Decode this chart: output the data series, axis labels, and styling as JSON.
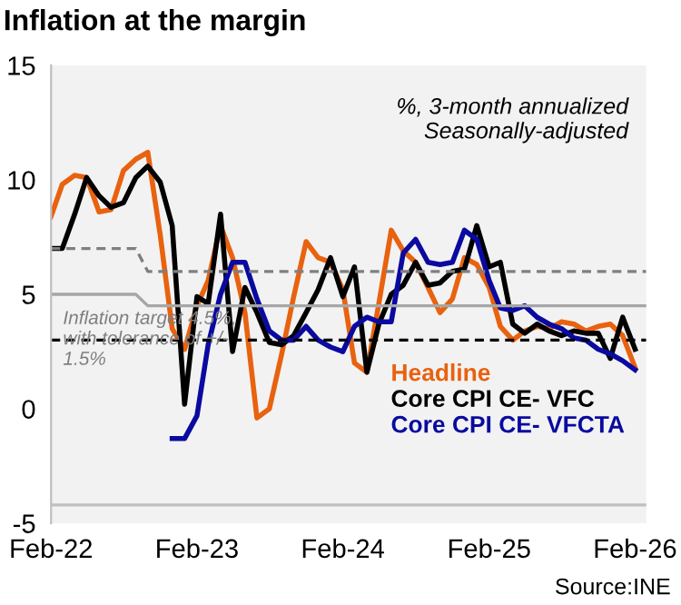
{
  "chart_data": {
    "type": "line",
    "title": "Inflation at the margin",
    "x": [
      "2022-02",
      "2022-03",
      "2022-04",
      "2022-05",
      "2022-06",
      "2022-07",
      "2022-08",
      "2022-09",
      "2022-10",
      "2022-11",
      "2022-12",
      "2023-01",
      "2023-02",
      "2023-03",
      "2023-04",
      "2023-05",
      "2023-06",
      "2023-07",
      "2023-08",
      "2023-09",
      "2023-10",
      "2023-11",
      "2023-12",
      "2024-01",
      "2024-02",
      "2024-03",
      "2024-04",
      "2024-05",
      "2024-06",
      "2024-07",
      "2024-08",
      "2024-09",
      "2024-10",
      "2024-11",
      "2024-12",
      "2025-01",
      "2025-02",
      "2025-03",
      "2025-04",
      "2025-05",
      "2025-06",
      "2025-07",
      "2025-08",
      "2025-09",
      "2025-10",
      "2025-11",
      "2025-12",
      "2026-01",
      "2026-02"
    ],
    "series": [
      {
        "name": "Headline",
        "color": "#e8620f",
        "values": [
          8.4,
          9.8,
          10.2,
          10.1,
          8.6,
          8.7,
          10.4,
          10.9,
          11.2,
          7.6,
          3.5,
          2.6,
          4.5,
          5.6,
          8.0,
          6.6,
          4.2,
          -0.4,
          0.0,
          2.4,
          4.9,
          7.3,
          6.6,
          6.4,
          5.2,
          2.0,
          1.6,
          4.6,
          7.8,
          6.9,
          6.4,
          5.3,
          4.2,
          4.8,
          6.6,
          6.3,
          5.3,
          3.6,
          3.0,
          3.4,
          3.6,
          3.5,
          3.8,
          3.7,
          3.4,
          3.6,
          3.7,
          3.2,
          1.8
        ]
      },
      {
        "name": "Core CPI CE- VFC",
        "color": "#000000",
        "values": [
          7.0,
          7.0,
          8.5,
          10.1,
          9.3,
          8.8,
          9.0,
          10.1,
          10.6,
          9.9,
          8.0,
          0.2,
          4.9,
          4.6,
          8.5,
          2.5,
          5.3,
          4.2,
          2.9,
          2.8,
          3.2,
          4.2,
          5.2,
          6.6,
          4.9,
          6.2,
          1.6,
          3.7,
          5.0,
          5.4,
          6.4,
          5.4,
          5.5,
          6.0,
          6.1,
          8.0,
          6.2,
          6.4,
          3.7,
          3.3,
          3.7,
          3.4,
          3.2,
          3.4,
          3.3,
          3.3,
          2.2,
          4.0,
          2.6
        ]
      },
      {
        "name": "Core CPI CE- VFCTA",
        "color": "#0a0aa0",
        "values": [
          null,
          null,
          null,
          null,
          null,
          null,
          null,
          null,
          null,
          null,
          -1.3,
          -1.3,
          -0.3,
          2.8,
          5.0,
          6.4,
          6.4,
          4.8,
          3.4,
          3.0,
          3.0,
          3.6,
          3.0,
          2.7,
          2.5,
          3.6,
          4.0,
          3.8,
          3.8,
          6.8,
          7.4,
          6.4,
          6.3,
          6.4,
          7.8,
          7.4,
          5.6,
          4.4,
          4.3,
          4.5,
          4.0,
          3.7,
          3.5,
          3.1,
          3.0,
          2.6,
          2.4,
          2.1,
          1.7
        ]
      },
      {
        "color": "#7f7f7f",
        "line_style": "dashed",
        "x": [
          "2022-02",
          "2022-09",
          "2022-10",
          "2026-03"
        ],
        "values": [
          7,
          7,
          6,
          6
        ]
      },
      {
        "color": "#a6a6a6",
        "line_style": "solid",
        "x": [
          "2022-02",
          "2022-09",
          "2022-10",
          "2026-03"
        ],
        "values": [
          5,
          5,
          4.5,
          4.5
        ]
      },
      {
        "color": "#000000",
        "line_style": "dashed",
        "x": [
          "2022-02",
          "2026-03"
        ],
        "values": [
          3,
          3
        ]
      }
    ],
    "ref_lines": [
      {
        "axis": "y",
        "value": -4.2,
        "color": "#bfbfbf"
      }
    ],
    "annotations": [
      "Inflation target 4.5%, with tolerance of +/- 1.5%",
      "%, 3-month annualized\nSeasonally-adjusted",
      "Source:INE"
    ],
    "xlim": [
      "2022-02",
      "2026-03"
    ],
    "xticks": [
      {
        "value": "2022-02",
        "label": "Feb-22"
      },
      {
        "value": "2023-02",
        "label": "Feb-23"
      },
      {
        "value": "2024-02",
        "label": "Feb-24"
      },
      {
        "value": "2025-02",
        "label": "Feb-25"
      },
      {
        "value": "2026-02",
        "label": "Feb-26"
      }
    ],
    "ylim": [
      -5,
      15
    ],
    "yticks": [
      -5,
      0,
      5,
      10,
      15
    ],
    "grid": false,
    "legend": "bottom right",
    "marker": "none",
    "line_style": "solid"
  }
}
